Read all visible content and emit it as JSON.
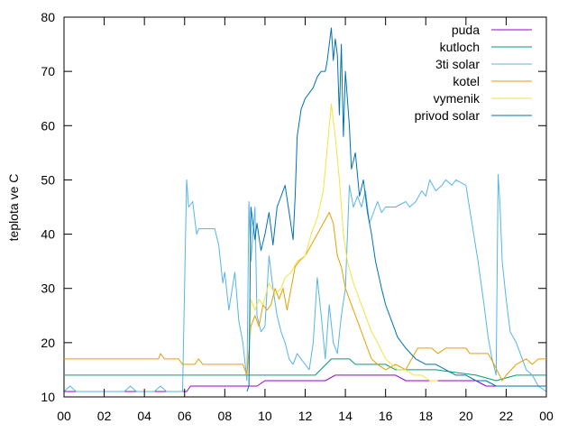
{
  "chart_data": {
    "type": "line",
    "title": "",
    "xlabel": "",
    "ylabel": "teplota ve C",
    "ylim": [
      10,
      80
    ],
    "xlim": [
      0,
      24
    ],
    "x_tick_labels": [
      "00",
      "02",
      "04",
      "06",
      "08",
      "10",
      "12",
      "14",
      "16",
      "18",
      "20",
      "22",
      "00"
    ],
    "y_tick_labels": [
      "10",
      "20",
      "30",
      "40",
      "50",
      "60",
      "70",
      "80"
    ],
    "grid": false,
    "legend_position": "top-right",
    "series": [
      {
        "name": "puda",
        "color": "#9400d3",
        "points": [
          [
            0,
            11
          ],
          [
            6.1,
            11
          ],
          [
            6.3,
            12
          ],
          [
            9.6,
            12
          ],
          [
            10,
            13
          ],
          [
            12,
            13
          ],
          [
            13,
            13
          ],
          [
            13.5,
            14
          ],
          [
            16.5,
            14
          ],
          [
            17,
            13
          ],
          [
            20.5,
            13
          ],
          [
            21,
            12
          ],
          [
            24,
            12
          ]
        ]
      },
      {
        "name": "kutloch",
        "color": "#009e73",
        "points": [
          [
            0,
            14
          ],
          [
            12.5,
            14
          ],
          [
            13.3,
            17
          ],
          [
            14.2,
            17
          ],
          [
            14.5,
            16
          ],
          [
            16,
            16
          ],
          [
            16.5,
            15
          ],
          [
            18.5,
            15
          ],
          [
            20.5,
            14
          ],
          [
            21.5,
            13
          ],
          [
            22.5,
            14
          ],
          [
            24,
            14
          ]
        ]
      },
      {
        "name": "3ti solar",
        "color": "#56b4e9",
        "points": [
          [
            0,
            11
          ],
          [
            0.3,
            12
          ],
          [
            0.6,
            11
          ],
          [
            1.5,
            11
          ],
          [
            3,
            11
          ],
          [
            3.3,
            12
          ],
          [
            3.6,
            11
          ],
          [
            4.5,
            11
          ],
          [
            4.8,
            12
          ],
          [
            5.1,
            11
          ],
          [
            5.9,
            11
          ],
          [
            6.1,
            50
          ],
          [
            6.2,
            45
          ],
          [
            6.4,
            46
          ],
          [
            6.6,
            40
          ],
          [
            6.7,
            41
          ],
          [
            7.5,
            41
          ],
          [
            7.7,
            38
          ],
          [
            7.9,
            31
          ],
          [
            8,
            33
          ],
          [
            8.2,
            26
          ],
          [
            8.5,
            33
          ],
          [
            8.7,
            24
          ],
          [
            8.9,
            20
          ],
          [
            9.1,
            13
          ],
          [
            9.2,
            46
          ],
          [
            9.3,
            35
          ],
          [
            9.5,
            45
          ],
          [
            9.6,
            25
          ],
          [
            9.8,
            22
          ],
          [
            10,
            23
          ],
          [
            10.2,
            36
          ],
          [
            10.4,
            30
          ],
          [
            10.6,
            25
          ],
          [
            10.8,
            22
          ],
          [
            11,
            20
          ],
          [
            11.2,
            17
          ],
          [
            11.4,
            16
          ],
          [
            11.6,
            18
          ],
          [
            11.8,
            17
          ],
          [
            12,
            16
          ],
          [
            12.2,
            15
          ],
          [
            12.4,
            20
          ],
          [
            12.6,
            32
          ],
          [
            12.8,
            25
          ],
          [
            13,
            17
          ],
          [
            13.2,
            27
          ],
          [
            13.4,
            20
          ],
          [
            13.6,
            18
          ],
          [
            13.8,
            25
          ],
          [
            14,
            30
          ],
          [
            14.2,
            49
          ],
          [
            14.4,
            45
          ],
          [
            14.6,
            47
          ],
          [
            14.8,
            45
          ],
          [
            15,
            48
          ],
          [
            15.2,
            42
          ],
          [
            15.4,
            44
          ],
          [
            15.6,
            46
          ],
          [
            15.8,
            44
          ],
          [
            16,
            45
          ],
          [
            16.5,
            45
          ],
          [
            17,
            46
          ],
          [
            17.2,
            45
          ],
          [
            17.5,
            46
          ],
          [
            17.8,
            48
          ],
          [
            18,
            47
          ],
          [
            18.2,
            50
          ],
          [
            18.5,
            48
          ],
          [
            18.8,
            49
          ],
          [
            19,
            50
          ],
          [
            19.3,
            49
          ],
          [
            19.5,
            50
          ],
          [
            20,
            49
          ],
          [
            20.3,
            42
          ],
          [
            20.6,
            35
          ],
          [
            20.9,
            27
          ],
          [
            21.1,
            21
          ],
          [
            21.3,
            17
          ],
          [
            21.5,
            14
          ],
          [
            21.6,
            51
          ],
          [
            21.7,
            45
          ],
          [
            21.8,
            35
          ],
          [
            22,
            28
          ],
          [
            22.2,
            22
          ],
          [
            22.5,
            20
          ],
          [
            22.8,
            17
          ],
          [
            23,
            15
          ],
          [
            23.3,
            14
          ],
          [
            23.6,
            12
          ],
          [
            24,
            11
          ]
        ]
      },
      {
        "name": "kotel",
        "color": "#e69f00",
        "points": [
          [
            0,
            17
          ],
          [
            4.7,
            17
          ],
          [
            4.8,
            18
          ],
          [
            5,
            17
          ],
          [
            5.7,
            17
          ],
          [
            5.9,
            16
          ],
          [
            6.5,
            16
          ],
          [
            6.7,
            17
          ],
          [
            6.9,
            16
          ],
          [
            8.9,
            16
          ],
          [
            9.1,
            14
          ],
          [
            9.3,
            23
          ],
          [
            9.5,
            25
          ],
          [
            9.7,
            23
          ],
          [
            9.9,
            27
          ],
          [
            10.1,
            26
          ],
          [
            10.3,
            27
          ],
          [
            10.5,
            30
          ],
          [
            10.7,
            28
          ],
          [
            10.9,
            30
          ],
          [
            11.1,
            26
          ],
          [
            11.3,
            30
          ],
          [
            11.5,
            34
          ],
          [
            11.7,
            35
          ],
          [
            12,
            36
          ],
          [
            12.3,
            38
          ],
          [
            12.6,
            40
          ],
          [
            12.9,
            42
          ],
          [
            13.2,
            44
          ],
          [
            13.4,
            42
          ],
          [
            13.6,
            36
          ],
          [
            13.8,
            34
          ],
          [
            14,
            30
          ],
          [
            14.3,
            27
          ],
          [
            14.6,
            24
          ],
          [
            15,
            20
          ],
          [
            15.3,
            17
          ],
          [
            15.6,
            16
          ],
          [
            16,
            15
          ],
          [
            16.5,
            16
          ],
          [
            17,
            15
          ],
          [
            17.3,
            17
          ],
          [
            17.6,
            19
          ],
          [
            18.3,
            19
          ],
          [
            18.6,
            18
          ],
          [
            19,
            19
          ],
          [
            20,
            19
          ],
          [
            20.2,
            18
          ],
          [
            21.1,
            18
          ],
          [
            21.4,
            16
          ],
          [
            21.8,
            13
          ],
          [
            22,
            14
          ],
          [
            22.5,
            16
          ],
          [
            23,
            17
          ],
          [
            23.3,
            16
          ],
          [
            23.6,
            17
          ],
          [
            24,
            17
          ]
        ]
      },
      {
        "name": "vymenik",
        "color": "#f0e442",
        "points": [
          [
            9.2,
            14
          ],
          [
            9.3,
            28
          ],
          [
            9.5,
            26
          ],
          [
            9.7,
            28
          ],
          [
            9.9,
            27
          ],
          [
            10.2,
            31
          ],
          [
            10.5,
            29
          ],
          [
            10.8,
            30
          ],
          [
            11,
            32
          ],
          [
            11.3,
            33
          ],
          [
            11.6,
            35
          ],
          [
            12,
            36
          ],
          [
            12.3,
            40
          ],
          [
            12.6,
            43
          ],
          [
            12.9,
            48
          ],
          [
            13.1,
            56
          ],
          [
            13.3,
            64
          ],
          [
            13.5,
            58
          ],
          [
            13.7,
            50
          ],
          [
            13.9,
            40
          ],
          [
            14.1,
            35
          ],
          [
            14.4,
            31
          ],
          [
            14.7,
            28
          ],
          [
            15,
            25
          ],
          [
            15.3,
            22
          ],
          [
            15.6,
            20
          ],
          [
            16,
            17
          ],
          [
            16.3,
            16
          ],
          [
            16.6,
            15
          ],
          [
            17,
            15
          ],
          [
            17.4,
            14
          ],
          [
            17.8,
            14
          ],
          [
            18.2,
            13
          ],
          [
            18.6,
            13
          ]
        ]
      },
      {
        "name": "privod solar",
        "color": "#0072b2",
        "points": [
          [
            9.1,
            11
          ],
          [
            9.2,
            12
          ],
          [
            9.3,
            45
          ],
          [
            9.5,
            39
          ],
          [
            9.6,
            42
          ],
          [
            9.8,
            37
          ],
          [
            10,
            40
          ],
          [
            10.2,
            44
          ],
          [
            10.4,
            38
          ],
          [
            10.6,
            45
          ],
          [
            10.8,
            47
          ],
          [
            11,
            49
          ],
          [
            11.2,
            44
          ],
          [
            11.4,
            39
          ],
          [
            11.5,
            47
          ],
          [
            11.6,
            58
          ],
          [
            11.8,
            63
          ],
          [
            12,
            65
          ],
          [
            12.2,
            66
          ],
          [
            12.4,
            67
          ],
          [
            12.6,
            69
          ],
          [
            12.8,
            70
          ],
          [
            13,
            70
          ],
          [
            13.1,
            72
          ],
          [
            13.2,
            75
          ],
          [
            13.3,
            78
          ],
          [
            13.4,
            72
          ],
          [
            13.5,
            76
          ],
          [
            13.6,
            73
          ],
          [
            13.7,
            62
          ],
          [
            13.8,
            75
          ],
          [
            13.9,
            58
          ],
          [
            14,
            70
          ],
          [
            14.1,
            65
          ],
          [
            14.2,
            60
          ],
          [
            14.3,
            52
          ],
          [
            14.5,
            55
          ],
          [
            14.7,
            47
          ],
          [
            14.9,
            50
          ],
          [
            15.1,
            44
          ],
          [
            15.3,
            40
          ],
          [
            15.5,
            35
          ],
          [
            15.8,
            30
          ],
          [
            16,
            27
          ],
          [
            16.3,
            24
          ],
          [
            16.6,
            21
          ],
          [
            17,
            19
          ],
          [
            17.5,
            17
          ],
          [
            18,
            16
          ],
          [
            18.5,
            16
          ],
          [
            19,
            15
          ],
          [
            19.5,
            14
          ],
          [
            20,
            14
          ],
          [
            20.5,
            13
          ],
          [
            21,
            13
          ],
          [
            21.5,
            12
          ],
          [
            22,
            12
          ],
          [
            24,
            12
          ]
        ]
      }
    ]
  }
}
